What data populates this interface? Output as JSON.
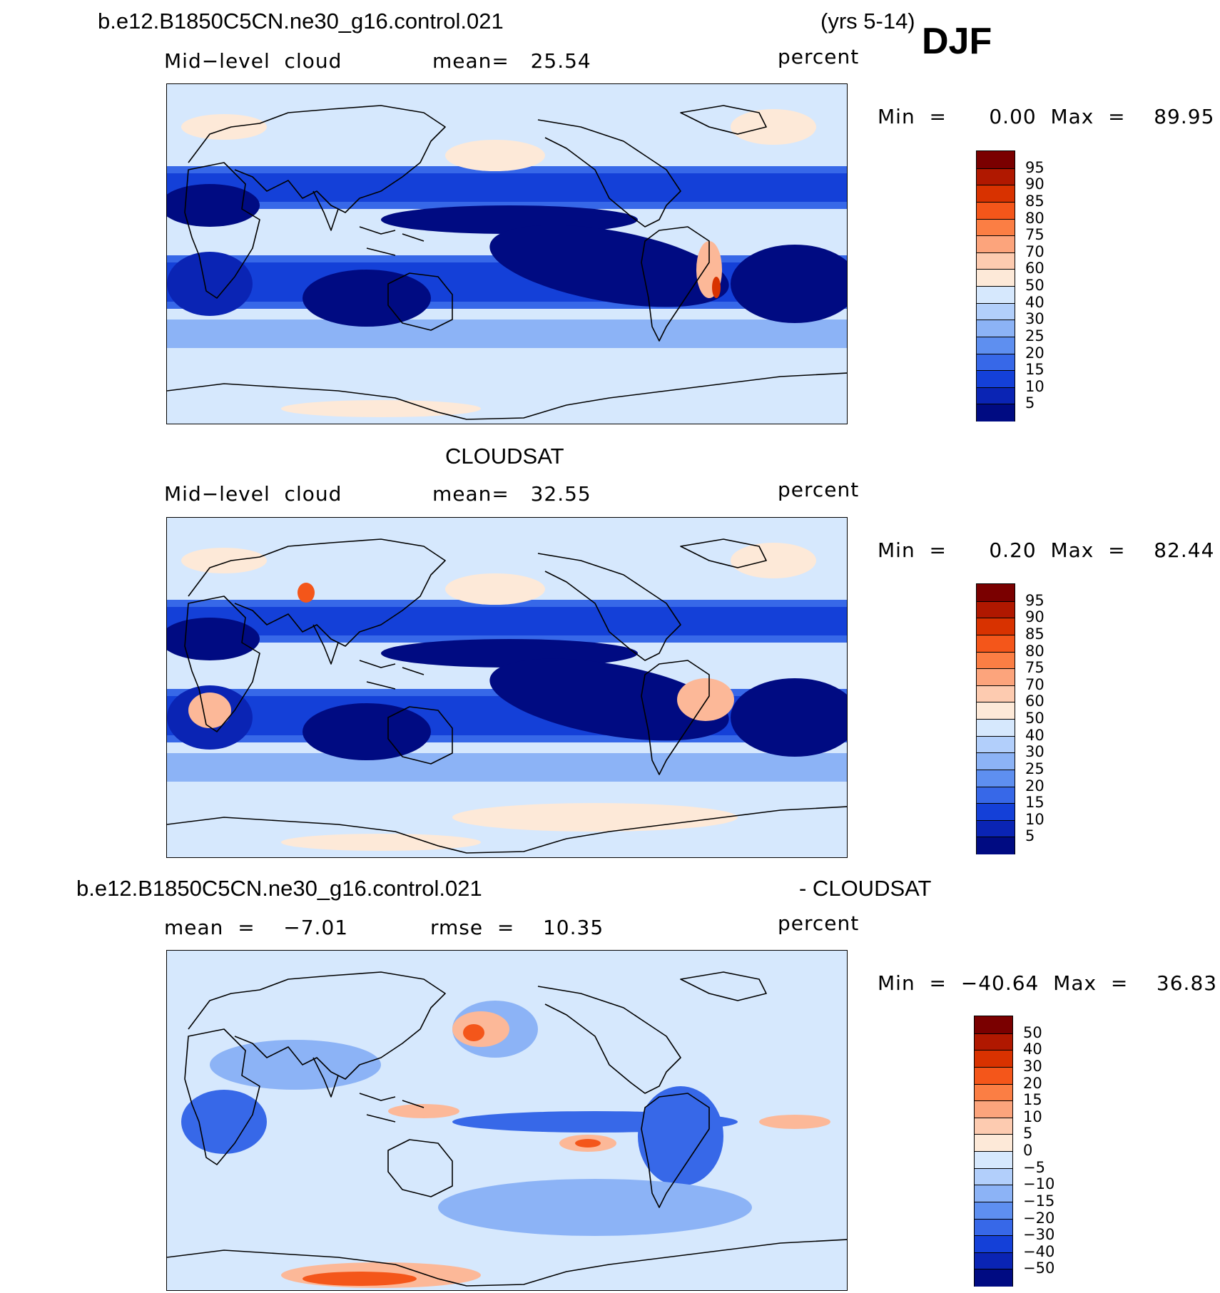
{
  "figure": {
    "case_title": "b.e12.B1850C5CN.ne30_g16.control.021",
    "years": "(yrs 5-14)",
    "season": "DJF"
  },
  "panels": [
    {
      "id": "model",
      "header": "",
      "left_label": "Mid−level  cloud",
      "mid_label": "mean=   25.54",
      "right_label": "percent",
      "minmax": "Min  =      0.00  Max  =    89.95",
      "colorbar": {
        "labels": [
          "95",
          "90",
          "85",
          "80",
          "75",
          "70",
          "60",
          "50",
          "40",
          "30",
          "25",
          "20",
          "15",
          "10",
          "5"
        ],
        "colors": [
          "#7a0000",
          "#b01800",
          "#d83200",
          "#f4561a",
          "#fb7e44",
          "#fca47c",
          "#fdcbb0",
          "#fde9d8",
          "#d6e8fd",
          "#b2cffb",
          "#8cb3f6",
          "#5e8ff0",
          "#3768e8",
          "#1440d8",
          "#0a24b4",
          "#000b82"
        ]
      }
    },
    {
      "id": "obs",
      "header": "CLOUDSAT",
      "left_label": "Mid−level  cloud",
      "mid_label": "mean=   32.55",
      "right_label": "percent",
      "minmax": "Min  =      0.20  Max  =    82.44",
      "colorbar": {
        "labels": [
          "95",
          "90",
          "85",
          "80",
          "75",
          "70",
          "60",
          "50",
          "40",
          "30",
          "25",
          "20",
          "15",
          "10",
          "5"
        ],
        "colors": [
          "#7a0000",
          "#b01800",
          "#d83200",
          "#f4561a",
          "#fb7e44",
          "#fca47c",
          "#fdcbb0",
          "#fde9d8",
          "#d6e8fd",
          "#b2cffb",
          "#8cb3f6",
          "#5e8ff0",
          "#3768e8",
          "#1440d8",
          "#0a24b4",
          "#000b82"
        ]
      }
    },
    {
      "id": "diff",
      "header_left": "b.e12.B1850C5CN.ne30_g16.control.021",
      "header_right": "- CLOUDSAT",
      "left_label": "mean  =    −7.01",
      "mid_label": "rmse  =    10.35",
      "right_label": "percent",
      "minmax": "Min  =  −40.64  Max  =    36.83",
      "colorbar": {
        "labels": [
          "50",
          "40",
          "30",
          "20",
          "15",
          "10",
          "5",
          "0",
          "−5",
          "−10",
          "−15",
          "−20",
          "−30",
          "−40",
          "−50"
        ],
        "colors": [
          "#7a0000",
          "#b01800",
          "#d83200",
          "#f4561a",
          "#fb7e44",
          "#fca47c",
          "#fdcbb0",
          "#fde9d8",
          "#d6e8fd",
          "#b2cffb",
          "#8cb3f6",
          "#5e8ff0",
          "#3768e8",
          "#1440d8",
          "#0a24b4",
          "#000b82"
        ]
      }
    }
  ],
  "map_palette": {
    "deep": "#000b82",
    "dark": "#0a24b4",
    "mid": "#1440d8",
    "blue": "#3768e8",
    "light": "#8cb3f6",
    "pale": "#d6e8fd",
    "peach": "#fde9d8",
    "salmon": "#fcb898",
    "orange": "#f4561a",
    "red": "#d83200"
  }
}
